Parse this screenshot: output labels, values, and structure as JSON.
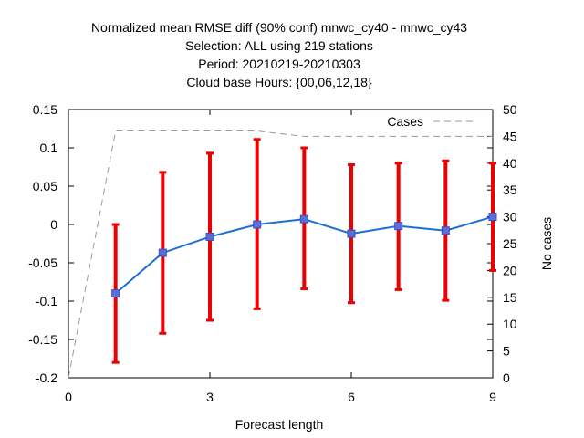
{
  "chart_data": {
    "type": "line",
    "title_lines": [
      "Normalized mean RMSE diff (90% conf) mnwc_cy40 - mnwc_cy43",
      "Selection: ALL using   219 stations",
      "Period: 20210219-20210303",
      "Cloud base   Hours: {00,06,12,18}"
    ],
    "xlabel": "Forecast length",
    "ylabel": "",
    "y2label": "No cases",
    "xlim": [
      0,
      9
    ],
    "ylim": [
      -0.2,
      0.15
    ],
    "y2lim": [
      0,
      50
    ],
    "x_ticks": [
      0,
      3,
      6,
      9
    ],
    "x_tick_labels": [
      "0",
      "3",
      "6",
      "9"
    ],
    "y_ticks": [
      -0.2,
      -0.15,
      -0.1,
      -0.05,
      0,
      0.05,
      0.1,
      0.15
    ],
    "y_tick_labels": [
      "-0.2",
      "-0.15",
      "-0.1",
      "-0.05",
      "0",
      "0.05",
      "0.1",
      "0.15"
    ],
    "y2_ticks": [
      0,
      5,
      10,
      15,
      20,
      25,
      30,
      35,
      40,
      45,
      50
    ],
    "y2_tick_labels": [
      "0",
      "5",
      "10",
      "15",
      "20",
      "25",
      "30",
      "35",
      "40",
      "45",
      "50"
    ],
    "grid": false,
    "legend_position": "top-right",
    "series": [
      {
        "name": "",
        "color": "#1a6fd8",
        "x": [
          1,
          2,
          3,
          4,
          5,
          6,
          7,
          8,
          9
        ],
        "y": [
          -0.09,
          -0.037,
          -0.016,
          0.0,
          0.007,
          -0.012,
          -0.002,
          -0.008,
          0.01
        ],
        "err_low": [
          -0.18,
          -0.142,
          -0.125,
          -0.11,
          -0.084,
          -0.102,
          -0.085,
          -0.099,
          -0.06
        ],
        "err_high": [
          0.0,
          0.068,
          0.093,
          0.111,
          0.1,
          0.078,
          0.08,
          0.083,
          0.08
        ],
        "error_color": "#ee0000"
      },
      {
        "name": "Cases",
        "axis": "y2",
        "style": "dashed",
        "color": "#999999",
        "x": [
          0,
          1,
          2,
          3,
          4,
          5,
          6,
          7,
          8,
          9
        ],
        "y": [
          0,
          46,
          46,
          46,
          46,
          45,
          45,
          45,
          45,
          45
        ]
      }
    ]
  }
}
